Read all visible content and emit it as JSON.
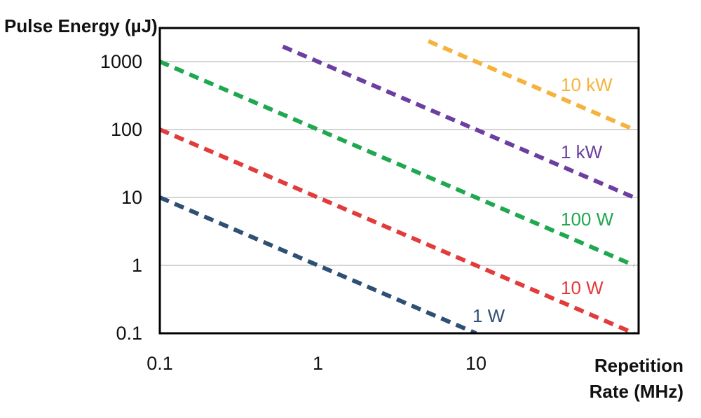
{
  "chart_data": {
    "type": "line",
    "title": "",
    "ylabel": "Pulse Energy (µJ)",
    "xlabel_line1": "Repetition",
    "xlabel_line2": "Rate (MHz)",
    "x_scale": "log",
    "y_scale": "log",
    "xlim": [
      0.1,
      100
    ],
    "ylim": [
      0.1,
      4000
    ],
    "x_ticks": [
      0.1,
      1,
      10
    ],
    "x_tick_labels": [
      "0.1",
      "1",
      "10"
    ],
    "y_ticks": [
      0.1,
      1,
      10,
      100,
      1000
    ],
    "y_tick_labels": [
      "0.1",
      "1",
      "10",
      "100",
      "1000"
    ],
    "grid": "horizontal",
    "line_style": "dashed",
    "series": [
      {
        "name": "1 W",
        "color": "#2f4f74",
        "x": [
          0.1,
          10
        ],
        "y": [
          10,
          0.1
        ]
      },
      {
        "name": "10 W",
        "color": "#e23b3b",
        "x": [
          0.1,
          100
        ],
        "y": [
          100,
          0.1
        ]
      },
      {
        "name": "100 W",
        "color": "#1fa84f",
        "x": [
          0.1,
          100
        ],
        "y": [
          1000,
          1
        ]
      },
      {
        "name": "1 kW",
        "color": "#6b3fa0",
        "x": [
          0.6,
          100
        ],
        "y": [
          1666,
          10
        ]
      },
      {
        "name": "10 kW",
        "color": "#f5b33d",
        "x": [
          5,
          100
        ],
        "y": [
          2000,
          100
        ]
      }
    ]
  }
}
